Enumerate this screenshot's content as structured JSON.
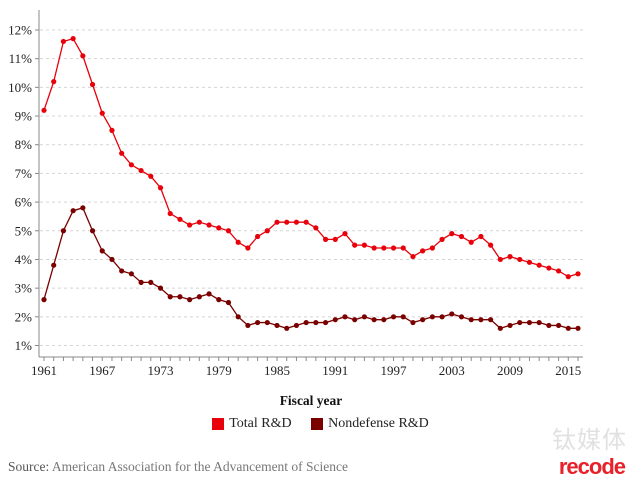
{
  "chart_data": {
    "type": "line",
    "title": "",
    "xlabel": "Fiscal year",
    "ylabel": "",
    "x": [
      1961,
      1962,
      1963,
      1964,
      1965,
      1966,
      1967,
      1968,
      1969,
      1970,
      1971,
      1972,
      1973,
      1974,
      1975,
      1976,
      1977,
      1978,
      1979,
      1980,
      1981,
      1982,
      1983,
      1984,
      1985,
      1986,
      1987,
      1988,
      1989,
      1990,
      1991,
      1992,
      1993,
      1994,
      1995,
      1996,
      1997,
      1998,
      1999,
      2000,
      2001,
      2002,
      2003,
      2004,
      2005,
      2006,
      2007,
      2008,
      2009,
      2010,
      2011,
      2012,
      2013,
      2014,
      2015,
      2016
    ],
    "xlim": [
      1961,
      2016
    ],
    "x_ticks": [
      "1961",
      "1967",
      "1973",
      "1979",
      "1985",
      "1991",
      "1997",
      "2003",
      "2009",
      "2015"
    ],
    "ylim": [
      0.6,
      12.6
    ],
    "y_ticks": [
      "1%",
      "2%",
      "3%",
      "4%",
      "5%",
      "6%",
      "7%",
      "8%",
      "9%",
      "10%",
      "11%",
      "12%"
    ],
    "y_tick_values": [
      1,
      2,
      3,
      4,
      5,
      6,
      7,
      8,
      9,
      10,
      11,
      12
    ],
    "grid": "horizontal dashed",
    "legend_position": "bottom-center",
    "series": [
      {
        "name": "Total R&D",
        "color": "#e8000b",
        "values": [
          9.2,
          10.2,
          11.6,
          11.7,
          11.1,
          10.1,
          9.1,
          8.5,
          7.7,
          7.3,
          7.1,
          6.9,
          6.5,
          5.6,
          5.4,
          5.2,
          5.3,
          5.2,
          5.1,
          5.0,
          4.6,
          4.4,
          4.8,
          5.0,
          5.3,
          5.3,
          5.3,
          5.3,
          5.1,
          4.7,
          4.7,
          4.9,
          4.5,
          4.5,
          4.4,
          4.4,
          4.4,
          4.4,
          4.1,
          4.3,
          4.4,
          4.7,
          4.9,
          4.8,
          4.6,
          4.8,
          4.5,
          4.0,
          4.1,
          4.0,
          3.9,
          3.8,
          3.7,
          3.6,
          3.4,
          3.5
        ]
      },
      {
        "name": "Nondefense R&D",
        "color": "#7a0000",
        "values": [
          2.6,
          3.8,
          5.0,
          5.7,
          5.8,
          5.0,
          4.3,
          4.0,
          3.6,
          3.5,
          3.2,
          3.2,
          3.0,
          2.7,
          2.7,
          2.6,
          2.7,
          2.8,
          2.6,
          2.5,
          2.0,
          1.7,
          1.8,
          1.8,
          1.7,
          1.6,
          1.7,
          1.8,
          1.8,
          1.8,
          1.9,
          2.0,
          1.9,
          2.0,
          1.9,
          1.9,
          2.0,
          2.0,
          1.8,
          1.9,
          2.0,
          2.0,
          2.1,
          2.0,
          1.9,
          1.9,
          1.9,
          1.6,
          1.7,
          1.8,
          1.8,
          1.8,
          1.7,
          1.7,
          1.6,
          1.6
        ]
      }
    ]
  },
  "legend": {
    "items": [
      {
        "label": "Total R&D",
        "color": "#e8000b"
      },
      {
        "label": "Nondefense R&D",
        "color": "#7a0000"
      }
    ]
  },
  "source": {
    "label": "Source:",
    "text": " American Association for the Advancement of Science"
  },
  "watermark": {
    "cn_text": "钛媒体",
    "logo_text": "recode"
  }
}
